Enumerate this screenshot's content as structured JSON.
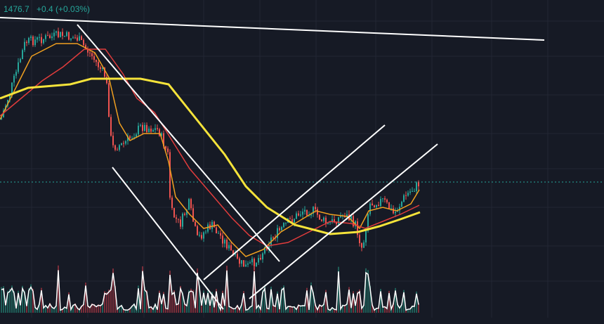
{
  "header": {
    "price": "1476.7",
    "change": "+0.4 (+0.03%)"
  }
}
